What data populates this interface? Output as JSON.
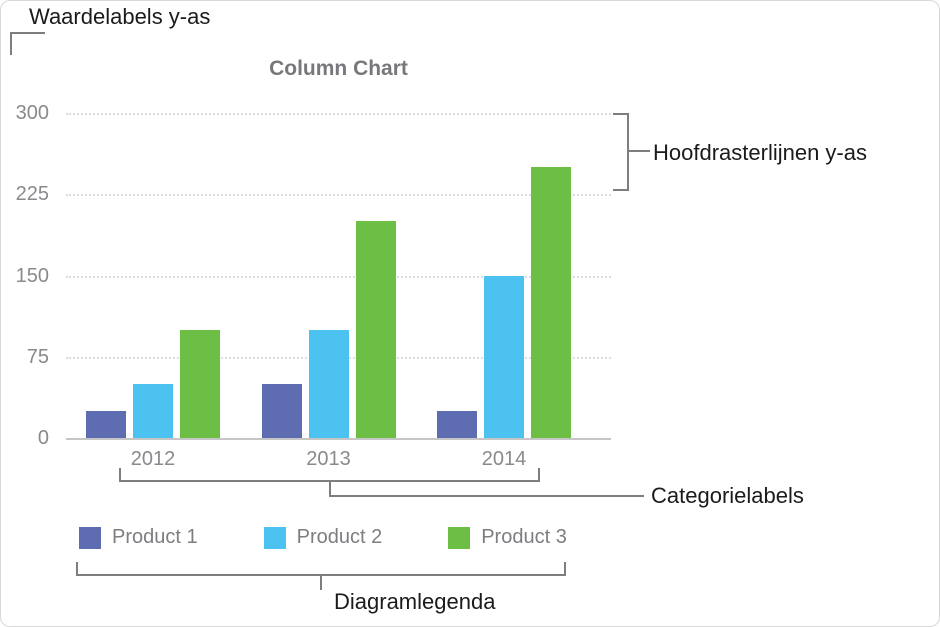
{
  "annotations": {
    "value_labels_y_axis": "Waardelabels y-as",
    "major_gridlines_y_axis": "Hoofdrasterlijnen y-as",
    "category_labels": "Categorielabels",
    "chart_legend": "Diagramlegenda"
  },
  "chart_data": {
    "type": "bar",
    "title": "Column Chart",
    "categories": [
      "2012",
      "2013",
      "2014"
    ],
    "series": [
      {
        "name": "Product 1",
        "color": "#5e6cb2",
        "values": [
          25,
          50,
          25
        ]
      },
      {
        "name": "Product 2",
        "color": "#4cc2f1",
        "values": [
          50,
          100,
          150
        ]
      },
      {
        "name": "Product 3",
        "color": "#6cbe45",
        "values": [
          100,
          200,
          250
        ]
      }
    ],
    "xlabel": "",
    "ylabel": "",
    "ylim": [
      0,
      300
    ],
    "yticks": [
      0,
      75,
      150,
      225,
      300
    ],
    "grid": true,
    "legend_position": "bottom"
  }
}
